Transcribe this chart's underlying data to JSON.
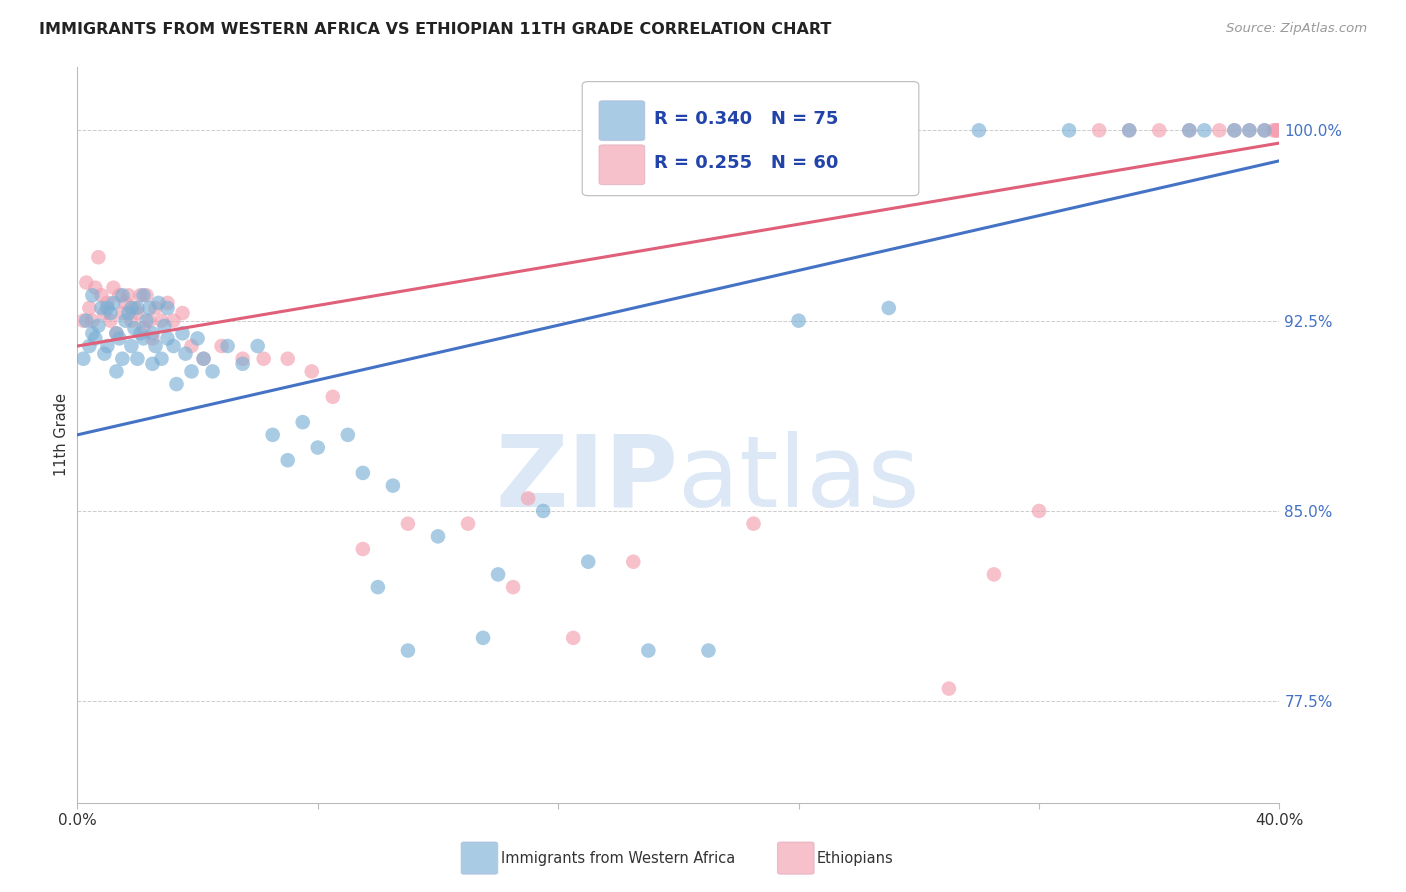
{
  "title": "IMMIGRANTS FROM WESTERN AFRICA VS ETHIOPIAN 11TH GRADE CORRELATION CHART",
  "source_text": "Source: ZipAtlas.com",
  "ylabel_text": "11th Grade",
  "xlim": [
    0.0,
    40.0
  ],
  "ylim": [
    73.5,
    102.5
  ],
  "right_yticks": [
    77.5,
    85.0,
    92.5,
    100.0
  ],
  "right_ytick_labels": [
    "77.5%",
    "85.0%",
    "92.5%",
    "100.0%"
  ],
  "legend_blue_r": "R = 0.340",
  "legend_blue_n": "N = 75",
  "legend_pink_r": "R = 0.255",
  "legend_pink_n": "N = 60",
  "legend_label_blue": "Immigrants from Western Africa",
  "legend_label_pink": "Ethiopians",
  "blue_color": "#7bafd4",
  "pink_color": "#f4a0b0",
  "blue_line_color": "#4472c4",
  "pink_line_color": "#e0607a",
  "watermark_zip": "ZIP",
  "watermark_atlas": "atlas",
  "watermark_color": "#dce8f5",
  "title_fontsize": 11.5,
  "blue_line_x0": 0.0,
  "blue_line_y0": 88.0,
  "blue_line_x1": 40.0,
  "blue_line_y1": 98.8,
  "pink_line_x0": 0.0,
  "pink_line_y0": 91.5,
  "pink_line_x1": 40.0,
  "pink_line_y1": 99.5,
  "blue_scatter_x": [
    0.2,
    0.3,
    0.4,
    0.5,
    0.5,
    0.6,
    0.7,
    0.8,
    0.9,
    1.0,
    1.0,
    1.1,
    1.2,
    1.3,
    1.3,
    1.4,
    1.5,
    1.5,
    1.6,
    1.7,
    1.8,
    1.8,
    1.9,
    2.0,
    2.0,
    2.1,
    2.2,
    2.2,
    2.3,
    2.4,
    2.5,
    2.5,
    2.6,
    2.7,
    2.8,
    2.9,
    3.0,
    3.0,
    3.2,
    3.3,
    3.5,
    3.6,
    3.8,
    4.0,
    4.2,
    4.5,
    5.0,
    5.5,
    6.0,
    6.5,
    7.0,
    7.5,
    8.0,
    9.0,
    9.5,
    10.0,
    10.5,
    11.0,
    12.0,
    13.5,
    14.0,
    15.5,
    17.0,
    19.0,
    21.0,
    24.0,
    27.0,
    30.0,
    33.0,
    35.0,
    37.0,
    37.5,
    38.5,
    39.0,
    39.5
  ],
  "blue_scatter_y": [
    91.0,
    92.5,
    91.5,
    93.5,
    92.0,
    91.8,
    92.3,
    93.0,
    91.2,
    93.0,
    91.5,
    92.8,
    93.2,
    92.0,
    90.5,
    91.8,
    93.5,
    91.0,
    92.5,
    92.8,
    93.0,
    91.5,
    92.2,
    93.0,
    91.0,
    92.0,
    93.5,
    91.8,
    92.5,
    93.0,
    92.0,
    90.8,
    91.5,
    93.2,
    91.0,
    92.3,
    91.8,
    93.0,
    91.5,
    90.0,
    92.0,
    91.2,
    90.5,
    91.8,
    91.0,
    90.5,
    91.5,
    90.8,
    91.5,
    88.0,
    87.0,
    88.5,
    87.5,
    88.0,
    86.5,
    82.0,
    86.0,
    79.5,
    84.0,
    80.0,
    82.5,
    85.0,
    83.0,
    79.5,
    79.5,
    92.5,
    93.0,
    100.0,
    100.0,
    100.0,
    100.0,
    100.0,
    100.0,
    100.0,
    100.0
  ],
  "pink_scatter_x": [
    0.2,
    0.3,
    0.4,
    0.5,
    0.6,
    0.7,
    0.8,
    0.9,
    1.0,
    1.1,
    1.2,
    1.3,
    1.4,
    1.5,
    1.6,
    1.7,
    1.8,
    1.9,
    2.0,
    2.1,
    2.2,
    2.3,
    2.4,
    2.5,
    2.6,
    2.8,
    3.0,
    3.2,
    3.5,
    3.8,
    4.2,
    4.8,
    5.5,
    6.2,
    7.0,
    7.8,
    8.5,
    9.5,
    11.0,
    13.0,
    14.5,
    15.0,
    16.5,
    18.5,
    22.5,
    29.0,
    30.5,
    32.0,
    34.0,
    35.0,
    36.0,
    37.0,
    38.0,
    38.5,
    39.0,
    39.5,
    39.8,
    39.9,
    39.9,
    39.9
  ],
  "pink_scatter_y": [
    92.5,
    94.0,
    93.0,
    92.5,
    93.8,
    95.0,
    93.5,
    92.8,
    93.2,
    92.5,
    93.8,
    92.0,
    93.5,
    92.8,
    93.2,
    93.5,
    92.5,
    93.0,
    92.8,
    93.5,
    92.2,
    93.5,
    92.5,
    91.8,
    93.0,
    92.5,
    93.2,
    92.5,
    92.8,
    91.5,
    91.0,
    91.5,
    91.0,
    91.0,
    91.0,
    90.5,
    89.5,
    83.5,
    84.5,
    84.5,
    82.0,
    85.5,
    80.0,
    83.0,
    84.5,
    78.0,
    82.5,
    85.0,
    100.0,
    100.0,
    100.0,
    100.0,
    100.0,
    100.0,
    100.0,
    100.0,
    100.0,
    100.0,
    100.0,
    100.0
  ]
}
